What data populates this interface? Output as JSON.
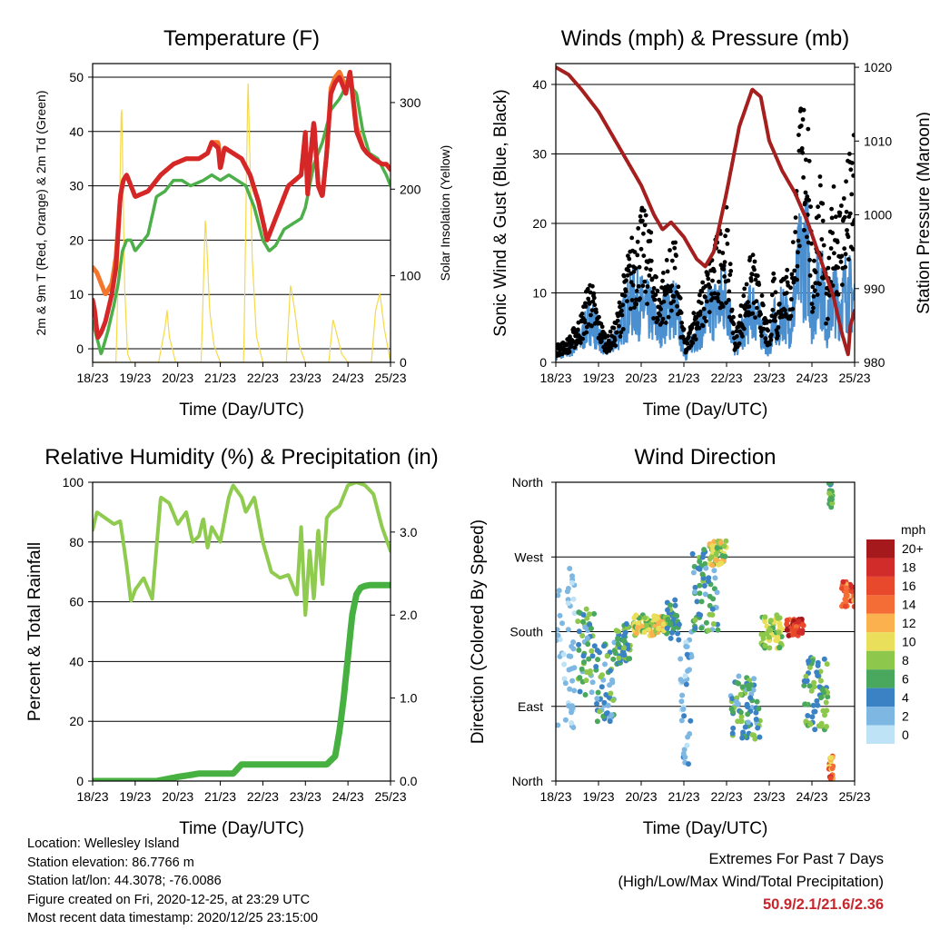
{
  "x_ticks": [
    "18/23",
    "19/23",
    "20/23",
    "21/23",
    "22/23",
    "23/23",
    "24/23",
    "25/23"
  ],
  "chart_data": [
    {
      "id": "temperature",
      "type": "line",
      "title": "Temperature (F)",
      "xlabel": "Time (Day/UTC)",
      "ylabel": "2m & 9m T (Red, Orange) & 2m Td (Green)",
      "y2label": "Solar Insolation (Yellow)",
      "xlim": [
        0,
        7
      ],
      "ylim": [
        -2.5,
        52.5
      ],
      "y2lim": [
        0,
        345
      ],
      "yticks": [
        0,
        10,
        20,
        30,
        40,
        50
      ],
      "y2ticks": [
        0,
        100,
        200,
        300
      ],
      "grid": "horizontal",
      "series": [
        {
          "color": "#d62728",
          "axis": "left",
          "x": [
            0,
            0.05,
            0.12,
            0.2,
            0.3,
            0.45,
            0.55,
            0.65,
            0.72,
            0.8,
            1.0,
            1.3,
            1.6,
            1.9,
            2.2,
            2.5,
            2.7,
            2.8,
            2.95,
            3.0,
            3.1,
            3.3,
            3.5,
            3.7,
            3.9,
            4.1,
            4.3,
            4.6,
            4.9,
            5.0,
            5.05,
            5.1,
            5.2,
            5.3,
            5.4,
            5.5,
            5.6,
            5.7,
            5.8,
            5.95,
            6.05,
            6.2,
            6.35,
            6.45,
            6.6,
            6.8,
            6.9,
            7.0
          ],
          "y": [
            9,
            7,
            2,
            3,
            5,
            10,
            15,
            28,
            31,
            32,
            28,
            29,
            32,
            34,
            35,
            35,
            36,
            38,
            37,
            33,
            37,
            36,
            35,
            32,
            27,
            20,
            24,
            30,
            32,
            40,
            28,
            34,
            42,
            30,
            28,
            36,
            47,
            49,
            50,
            47,
            51,
            40,
            37,
            36,
            35,
            34,
            34,
            33
          ]
        },
        {
          "color": "#f4762b",
          "axis": "left",
          "x": [
            0,
            0.1,
            0.2,
            0.3,
            0.45,
            0.55,
            0.65,
            0.72,
            0.8,
            1.0,
            1.3,
            1.6,
            1.9,
            2.2,
            2.5,
            2.7,
            2.8,
            2.95,
            3.0,
            3.1,
            3.3,
            3.5,
            3.7,
            3.9,
            4.1,
            4.3,
            4.6,
            4.9,
            5.0,
            5.05,
            5.1,
            5.2,
            5.3,
            5.4,
            5.5,
            5.6,
            5.7,
            5.8,
            5.95,
            6.05,
            6.2,
            6.35,
            6.45,
            6.6,
            6.8,
            6.9,
            7.0
          ],
          "y": [
            15,
            14,
            12,
            10,
            12,
            17,
            28,
            31,
            32,
            28,
            29,
            32,
            34,
            35,
            35,
            36,
            38,
            38,
            34,
            37,
            36,
            35,
            32,
            27,
            20,
            24,
            30,
            32,
            40,
            28,
            34,
            42,
            30,
            28,
            36,
            48,
            50,
            51,
            48,
            51,
            41,
            37,
            36,
            35,
            34,
            34,
            33
          ]
        },
        {
          "color": "#4daf4a",
          "axis": "left",
          "x": [
            0,
            0.1,
            0.2,
            0.35,
            0.5,
            0.6,
            0.7,
            0.8,
            0.9,
            1.0,
            1.3,
            1.5,
            1.7,
            1.9,
            2.1,
            2.3,
            2.6,
            2.8,
            3.0,
            3.2,
            3.4,
            3.6,
            3.8,
            4.0,
            4.15,
            4.3,
            4.5,
            4.7,
            4.9,
            5.0,
            5.2,
            5.4,
            5.6,
            5.8,
            6.0,
            6.2,
            6.35,
            6.5,
            6.7,
            6.9,
            7.0
          ],
          "y": [
            5,
            2,
            -1,
            3,
            8,
            12,
            18,
            20,
            20,
            18,
            21,
            28,
            29,
            31,
            31,
            30,
            31,
            32,
            31,
            32,
            31,
            30,
            26,
            20,
            18,
            19,
            22,
            23,
            24,
            26,
            34,
            38,
            44,
            46,
            49,
            47,
            40,
            36,
            35,
            32,
            30
          ]
        },
        {
          "color": "#f5d94a",
          "axis": "right",
          "x": [
            0,
            0.55,
            0.62,
            0.68,
            0.75,
            0.82,
            0.9,
            1.55,
            1.7,
            1.75,
            1.8,
            1.95,
            2.55,
            2.65,
            2.75,
            2.85,
            3.0,
            3.55,
            3.65,
            3.75,
            3.85,
            4.0,
            4.55,
            4.65,
            4.75,
            4.85,
            5.0,
            5.55,
            5.65,
            5.75,
            5.85,
            6.0,
            6.55,
            6.65,
            6.75,
            6.85,
            7.0
          ],
          "y": [
            0,
            0,
            140,
            310,
            90,
            10,
            0,
            0,
            40,
            60,
            30,
            0,
            0,
            170,
            60,
            20,
            0,
            0,
            330,
            120,
            30,
            0,
            0,
            90,
            60,
            20,
            0,
            0,
            50,
            30,
            10,
            0,
            0,
            60,
            80,
            40,
            0
          ]
        }
      ]
    },
    {
      "id": "winds",
      "type": "scatter",
      "title": "Winds (mph) & Pressure (mb)",
      "xlabel": "Time (Day/UTC)",
      "ylabel": "Sonic Wind & Gust (Blue, Black)",
      "y2label": "Station Pressure (Maroon)",
      "xlim": [
        0,
        7
      ],
      "ylim": [
        0,
        43
      ],
      "y2lim": [
        980,
        1020.5
      ],
      "yticks": [
        0,
        10,
        20,
        30,
        40
      ],
      "y2ticks": [
        980,
        990,
        1000,
        1010,
        1020
      ],
      "grid": "horizontal",
      "series": [
        {
          "color": "#4a8fd0",
          "axis": "left",
          "style": "band",
          "x": [
            0,
            0.3,
            0.6,
            0.8,
            1.0,
            1.2,
            1.4,
            1.6,
            1.8,
            2.0,
            2.2,
            2.4,
            2.6,
            2.8,
            2.95,
            3.05,
            3.2,
            3.4,
            3.6,
            3.8,
            4.0,
            4.2,
            4.4,
            4.6,
            4.8,
            5.0,
            5.1,
            5.2,
            5.3,
            5.5,
            5.7,
            5.9,
            6.0,
            6.2,
            6.35,
            6.5,
            6.65,
            6.8,
            7.0
          ],
          "y": [
            1,
            2,
            4,
            8,
            5,
            2,
            4,
            8,
            11,
            10,
            9,
            6,
            9,
            10,
            4,
            1,
            4,
            6,
            9,
            10,
            12,
            2,
            6,
            10,
            6,
            2,
            8,
            4,
            10,
            6,
            17,
            20,
            8,
            16,
            6,
            12,
            10,
            13,
            11
          ]
        },
        {
          "color": "#000000",
          "axis": "left",
          "style": "dots",
          "x": [
            0,
            0.3,
            0.6,
            0.8,
            1.0,
            1.2,
            1.4,
            1.6,
            1.8,
            2.0,
            2.2,
            2.4,
            2.6,
            2.8,
            2.95,
            3.05,
            3.2,
            3.4,
            3.6,
            3.8,
            4.0,
            4.2,
            4.4,
            4.6,
            4.8,
            5.0,
            5.1,
            5.2,
            5.3,
            5.5,
            5.7,
            5.9,
            6.0,
            6.2,
            6.35,
            6.5,
            6.65,
            6.8,
            7.0
          ],
          "y": [
            2,
            3,
            6,
            11,
            6,
            3,
            5,
            11,
            16,
            19,
            17,
            9,
            13,
            15,
            6,
            2,
            6,
            9,
            13,
            16,
            19,
            3,
            9,
            14,
            9,
            3,
            13,
            6,
            14,
            10,
            30,
            36,
            12,
            26,
            9,
            22,
            20,
            24,
            28
          ]
        },
        {
          "color": "#a51f1f",
          "axis": "right",
          "style": "line",
          "x": [
            0,
            0.3,
            0.6,
            1.0,
            1.5,
            2.0,
            2.3,
            2.5,
            2.7,
            3.0,
            3.3,
            3.5,
            3.7,
            4.0,
            4.3,
            4.6,
            4.8,
            5.0,
            5.3,
            5.6,
            5.9,
            6.2,
            6.5,
            6.7,
            6.85,
            6.9,
            7.0
          ],
          "y": [
            1020,
            1019,
            1017,
            1014,
            1009,
            1004,
            1000,
            998,
            999,
            997,
            994,
            993,
            995,
            1003,
            1012,
            1017,
            1016,
            1010,
            1006,
            1003,
            999,
            994,
            989,
            984,
            981,
            985,
            987
          ]
        }
      ]
    },
    {
      "id": "humidity",
      "type": "line",
      "title": "Relative Humidity (%) & Precipitation (in)",
      "xlabel": "Time (Day/UTC)",
      "ylabel": "Percent & Total Rainfall",
      "xlim": [
        0,
        7
      ],
      "ylim": [
        0,
        100
      ],
      "y2lim": [
        0,
        3.6
      ],
      "yticks": [
        0,
        20,
        40,
        60,
        80,
        100
      ],
      "y2ticks": [
        0.0,
        1.0,
        2.0,
        3.0
      ],
      "grid": "horizontal",
      "series": [
        {
          "color": "#8fcb4f",
          "axis": "left",
          "x": [
            0,
            0.1,
            0.3,
            0.5,
            0.65,
            0.8,
            0.9,
            1.0,
            1.2,
            1.4,
            1.6,
            1.8,
            2.0,
            2.2,
            2.35,
            2.5,
            2.6,
            2.7,
            2.8,
            3.0,
            3.2,
            3.3,
            3.5,
            3.6,
            3.8,
            4.0,
            4.2,
            4.4,
            4.6,
            4.8,
            4.9,
            5.0,
            5.1,
            5.2,
            5.3,
            5.4,
            5.5,
            5.6,
            5.8,
            6.0,
            6.2,
            6.4,
            6.6,
            6.8,
            7.0
          ],
          "y": [
            84,
            90,
            88,
            86,
            87,
            72,
            60,
            64,
            68,
            61,
            95,
            93,
            86,
            90,
            80,
            82,
            88,
            78,
            85,
            80,
            95,
            99,
            95,
            90,
            95,
            80,
            70,
            68,
            69,
            62,
            85,
            55,
            78,
            60,
            85,
            65,
            88,
            90,
            92,
            99,
            100,
            99,
            96,
            85,
            77
          ]
        },
        {
          "color": "#46b041",
          "axis": "right",
          "x": [
            0,
            1.5,
            2.0,
            2.5,
            3.0,
            3.3,
            3.5,
            4.0,
            4.5,
            5.0,
            5.5,
            5.7,
            5.8,
            5.9,
            6.0,
            6.1,
            6.2,
            6.3,
            6.4,
            6.5,
            7.0
          ],
          "y": [
            0.0,
            0.0,
            0.05,
            0.09,
            0.09,
            0.09,
            0.2,
            0.2,
            0.2,
            0.2,
            0.2,
            0.3,
            0.6,
            1.0,
            1.5,
            2.0,
            2.25,
            2.33,
            2.35,
            2.36,
            2.36
          ]
        }
      ]
    },
    {
      "id": "direction",
      "type": "scatter",
      "title": "Wind Direction",
      "xlabel": "Time (Day/UTC)",
      "ylabel": "Direction (Colored By Speed)",
      "xlim": [
        0,
        7
      ],
      "ylim": [
        0,
        360
      ],
      "ytick_labels": [
        "North",
        "East",
        "South",
        "West",
        "North"
      ],
      "grid": "horizontal",
      "colorbar": {
        "unit": "mph",
        "labels": [
          "20+",
          "18",
          "16",
          "14",
          "12",
          "10",
          "8",
          "6",
          "4",
          "2",
          "0"
        ],
        "colors": [
          "#a5191c",
          "#d12b2a",
          "#e8482b",
          "#f46d36",
          "#fbb14d",
          "#e9df5a",
          "#8dc74b",
          "#49a75e",
          "#3b82c4",
          "#7db7e2",
          "#bfe3f6"
        ]
      },
      "clusters": [
        {
          "x": [
            0.0,
            0.45
          ],
          "dir": [
            60,
            260
          ],
          "speed": [
            0,
            3
          ]
        },
        {
          "x": [
            0.5,
            0.9
          ],
          "dir": [
            100,
            210
          ],
          "speed": [
            2,
            9
          ]
        },
        {
          "x": [
            0.9,
            1.4
          ],
          "dir": [
            70,
            170
          ],
          "speed": [
            2,
            8
          ]
        },
        {
          "x": [
            1.4,
            1.75
          ],
          "dir": [
            140,
            190
          ],
          "speed": [
            3,
            8
          ]
        },
        {
          "x": [
            1.8,
            2.6
          ],
          "dir": [
            175,
            200
          ],
          "speed": [
            5,
            12
          ]
        },
        {
          "x": [
            2.6,
            2.9
          ],
          "dir": [
            170,
            220
          ],
          "speed": [
            3,
            8
          ]
        },
        {
          "x": [
            2.9,
            3.2
          ],
          "dir": [
            20,
            180
          ],
          "speed": [
            0,
            4
          ]
        },
        {
          "x": [
            3.2,
            3.8
          ],
          "dir": [
            180,
            280
          ],
          "speed": [
            2,
            8
          ]
        },
        {
          "x": [
            3.6,
            4.0
          ],
          "dir": [
            260,
            290
          ],
          "speed": [
            6,
            12
          ]
        },
        {
          "x": [
            4.1,
            4.8
          ],
          "dir": [
            50,
            130
          ],
          "speed": [
            2,
            8
          ]
        },
        {
          "x": [
            4.8,
            5.3
          ],
          "dir": [
            160,
            200
          ],
          "speed": [
            6,
            11
          ]
        },
        {
          "x": [
            5.4,
            5.8
          ],
          "dir": [
            175,
            195
          ],
          "speed": [
            14,
            20
          ]
        },
        {
          "x": [
            5.8,
            6.4
          ],
          "dir": [
            60,
            150
          ],
          "speed": [
            3,
            9
          ]
        },
        {
          "x": [
            6.4,
            6.5
          ],
          "dir": [
            330,
            360
          ],
          "speed": [
            4,
            8
          ]
        },
        {
          "x": [
            6.4,
            6.5
          ],
          "dir": [
            0,
            30
          ],
          "speed": [
            10,
            18
          ]
        },
        {
          "x": [
            6.7,
            7.0
          ],
          "dir": [
            210,
            240
          ],
          "speed": [
            12,
            18
          ]
        }
      ]
    }
  ],
  "info": {
    "location": "Location: Wellesley Island",
    "elevation": "Station elevation: 86.7766 m",
    "latlon": "Station lat/lon: 44.3078; -76.0086",
    "created": "Figure created on Fri, 2020-12-25, at 23:29 UTC",
    "recent": "Most recent data timestamp: 2020/12/25 23:15:00"
  },
  "extremes": {
    "title": "Extremes For Past 7 Days",
    "subtitle": "(High/Low/Max Wind/Total Precipitation)",
    "values": "50.9/2.1/21.6/2.36"
  }
}
